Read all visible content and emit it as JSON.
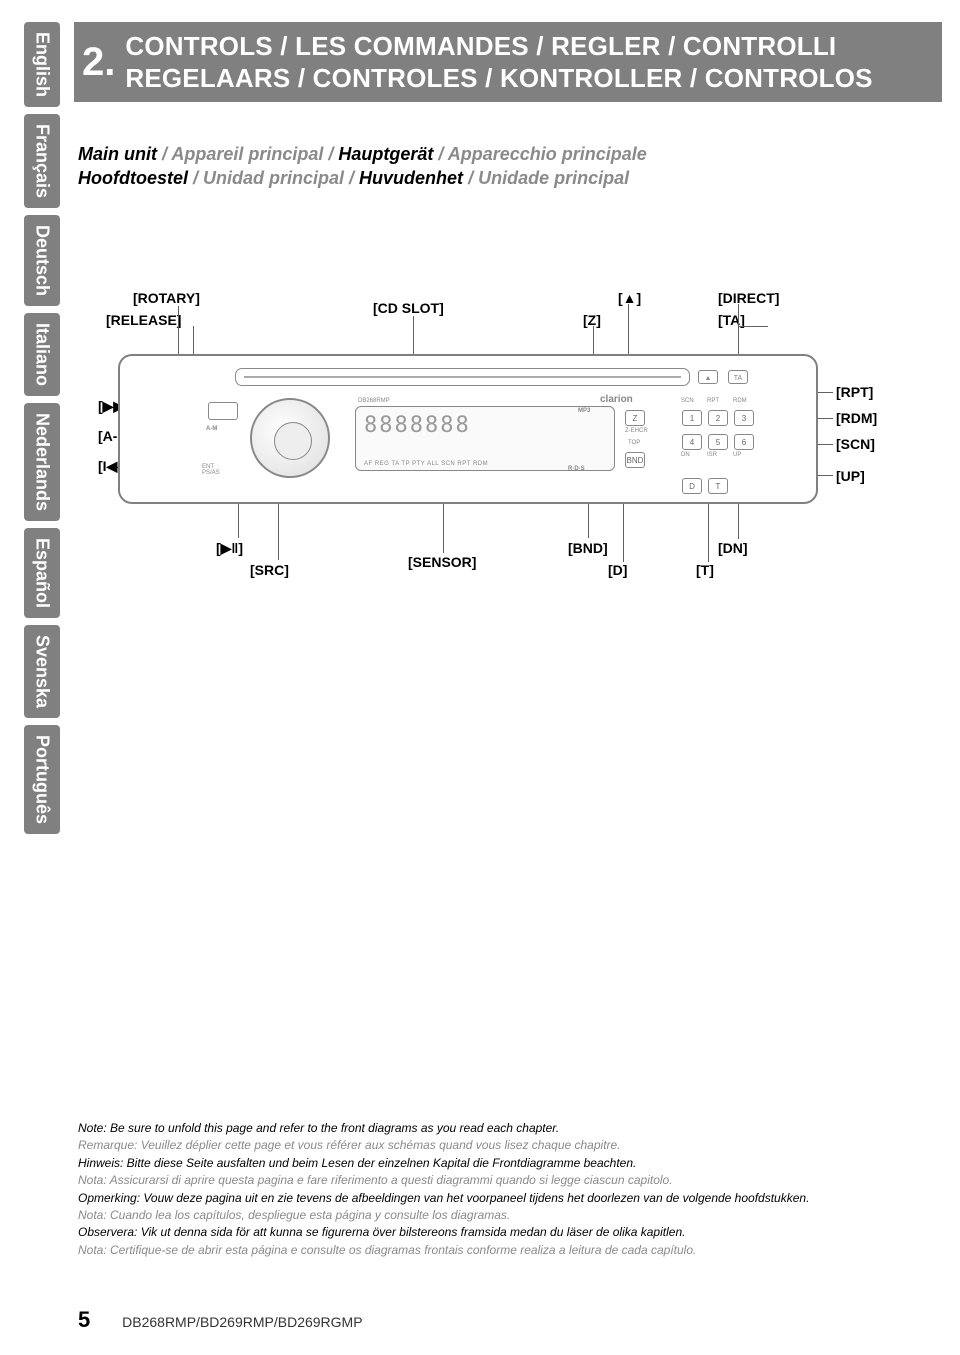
{
  "sidebar": {
    "languages": [
      "English",
      "Français",
      "Deutsch",
      "Italiano",
      "Nederlands",
      "Español",
      "Svenska",
      "Português"
    ]
  },
  "header": {
    "section_number": "2.",
    "line1": "CONTROLS / LES COMMANDES / REGLER / CONTROLLI",
    "line2": "REGELAARS / CONTROLES / KONTROLLER / CONTROLOS"
  },
  "main_unit": {
    "parts": [
      {
        "text": "Main unit",
        "style": "bold"
      },
      {
        "text": " / ",
        "style": "sep"
      },
      {
        "text": "Appareil principal",
        "style": "gray"
      },
      {
        "text": " / ",
        "style": "sep"
      },
      {
        "text": "Hauptgerät",
        "style": "bold"
      },
      {
        "text": " / ",
        "style": "sep"
      },
      {
        "text": "Apparecchio principale",
        "style": "gray"
      }
    ],
    "parts2": [
      {
        "text": "Hoofdtoestel",
        "style": "bold"
      },
      {
        "text": " / ",
        "style": "sep"
      },
      {
        "text": "Unidad principal",
        "style": "gray"
      },
      {
        "text": " / ",
        "style": "sep"
      },
      {
        "text": "Huvudenhet",
        "style": "bold"
      },
      {
        "text": " / ",
        "style": "sep"
      },
      {
        "text": "Unidade principal",
        "style": "gray"
      }
    ]
  },
  "diagram": {
    "labels": {
      "rotary": "[ROTARY]",
      "release": "[RELEASE]",
      "cd_slot": "[CD SLOT]",
      "eject": "[▲]",
      "z": "[Z]",
      "direct": "[DIRECT]",
      "ta": "[TA]",
      "ff": "[▶▶I]",
      "am": "[A-M]",
      "rw": "[I◀◀]",
      "rpt": "[RPT]",
      "rdm": "[RDM]",
      "scn": "[SCN]",
      "up": "[UP]",
      "play": "[▶‖]",
      "src": "[SRC]",
      "sensor": "[SENSOR]",
      "bnd": "[BND]",
      "d": "[D]",
      "dn": "[DN]",
      "t": "[T]"
    },
    "face": {
      "model": "DB268RMP",
      "brand": "clarion",
      "lcd_segments": "8888888",
      "lcd_sub": "AF  REG  TA  TP  PTY    ALL  SCN RPT RDM",
      "grid_labels_top": [
        "SCN",
        "RPT",
        "RDM"
      ],
      "grid_nums": [
        "1",
        "2",
        "3",
        "4",
        "5",
        "6"
      ],
      "grid_labels_bot": [
        "DN",
        "ISR",
        "UP"
      ],
      "z_btn": "Z",
      "bnd_btn": "BND",
      "d_btn": "D",
      "t_btn": "T",
      "top_txt": "TOP",
      "eject_icon": "▲",
      "ta_icon": "TA",
      "ent_txt": "ENT\nPS/AS",
      "am_txt": "A-M",
      "rds_txt": "R·D·S",
      "mp3_txt": "MP3"
    }
  },
  "notes": [
    {
      "style": "black",
      "text": "Note: Be sure to unfold this page and refer to the front diagrams as you read each chapter."
    },
    {
      "style": "gray",
      "text": "Remarque: Veuillez déplier cette page et vous référer aux schémas quand vous lisez chaque chapitre."
    },
    {
      "style": "black",
      "text": "Hinweis: Bitte diese Seite ausfalten und beim Lesen der einzelnen Kapital die Frontdiagramme beachten."
    },
    {
      "style": "gray",
      "text": "Nota: Assicurarsi di aprire questa pagina e fare riferimento a questi diagrammi quando si legge ciascun capitolo."
    },
    {
      "style": "black",
      "text": "Opmerking: Vouw deze pagina uit en zie tevens de afbeeldingen van het voorpaneel tijdens het doorlezen van de volgende hoofdstukken."
    },
    {
      "style": "gray",
      "text": "Nota: Cuando lea los capítulos, despliegue esta página y consulte los diagramas."
    },
    {
      "style": "black",
      "text": "Observera: Vik ut denna sida för att kunna se figurerna över bilstereons framsida medan du läser de olika kapitlen."
    },
    {
      "style": "gray",
      "text": "Nota: Certifique-se de abrir esta página e consulte os diagramas frontais conforme realiza a leitura de cada capítulo."
    }
  ],
  "footer": {
    "page": "5",
    "models": "DB268RMP/BD269RMP/BD269RGMP"
  }
}
